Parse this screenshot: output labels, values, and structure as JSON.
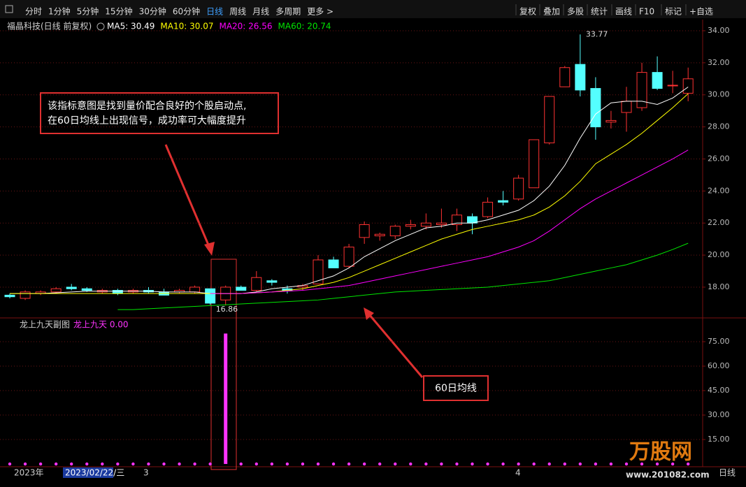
{
  "toolbar": {
    "tabs": [
      "分时",
      "1分钟",
      "5分钟",
      "15分钟",
      "30分钟",
      "60分钟",
      "日线",
      "周线",
      "月线",
      "多周期",
      "更多 >"
    ],
    "active_tab": 6,
    "buttons": [
      "复权",
      "叠加",
      "多股",
      "统计",
      "画线",
      "F10",
      "标记",
      "+自选"
    ]
  },
  "chart_title": "福晶科技(日线 前复权)",
  "note": [
    "该指标意图是找到量价配合良好的个股启动点,",
    "在60日均线上出现信号，成功率可大幅度提升"
  ],
  "ma60_note": "60日均线",
  "footer": {
    "year": "2023年",
    "cursor_date": "2023/02/22/三",
    "months": [
      "3",
      "4"
    ],
    "period": "日线"
  },
  "watermark": {
    "brand": "万股网",
    "site": "www.201082.com"
  },
  "chart_data": [
    {
      "type": "candlestick",
      "up_color": "#ff3232",
      "down_color": "#54ffff",
      "open": [
        17.5,
        17.3,
        17.6,
        17.7,
        18.0,
        17.9,
        17.7,
        17.8,
        17.7,
        17.8,
        17.7,
        17.7,
        17.7,
        17.9,
        17.2,
        18.0,
        17.8,
        18.4,
        17.9,
        18.0,
        18.2,
        19.7,
        19.3,
        21.1,
        21.2,
        21.2,
        21.8,
        21.8,
        21.9,
        21.9,
        22.4,
        22.4,
        23.4,
        23.5,
        24.2,
        27.0,
        30.5,
        31.9,
        30.4,
        28.3,
        28.9,
        29.2,
        31.4,
        30.6,
        30.1
      ],
      "high": [
        17.6,
        17.8,
        17.8,
        18.0,
        18.2,
        18.0,
        17.9,
        17.9,
        17.9,
        18.0,
        17.9,
        17.9,
        18.1,
        17.9,
        18.1,
        18.1,
        19.0,
        18.5,
        18.1,
        18.2,
        20.0,
        19.9,
        20.7,
        22.1,
        21.4,
        21.9,
        22.2,
        22.6,
        22.9,
        22.9,
        22.6,
        23.6,
        24.0,
        25.0,
        27.2,
        29.9,
        31.8,
        33.77,
        31.1,
        29.0,
        30.5,
        32.0,
        32.4,
        31.5,
        31.7
      ],
      "low": [
        17.3,
        17.2,
        17.5,
        17.6,
        17.8,
        17.7,
        17.6,
        17.5,
        17.6,
        17.6,
        17.5,
        17.6,
        17.6,
        16.9,
        16.86,
        17.8,
        17.7,
        18.1,
        17.6,
        17.8,
        18.2,
        19.2,
        19.2,
        20.7,
        20.9,
        21.0,
        21.6,
        21.6,
        21.7,
        21.5,
        21.3,
        22.3,
        23.1,
        23.4,
        24.2,
        26.9,
        30.5,
        29.9,
        27.2,
        27.9,
        27.7,
        29.0,
        30.3,
        30.1,
        29.6
      ],
      "close": [
        17.4,
        17.7,
        17.7,
        17.9,
        17.9,
        17.8,
        17.8,
        17.6,
        17.8,
        17.7,
        17.5,
        17.8,
        18.0,
        17.0,
        18.0,
        17.8,
        18.6,
        18.3,
        17.8,
        18.1,
        19.7,
        19.2,
        20.5,
        21.9,
        21.3,
        21.8,
        21.9,
        22.0,
        22.0,
        22.5,
        22.0,
        23.3,
        23.3,
        24.8,
        27.2,
        29.9,
        31.7,
        30.3,
        28.0,
        28.4,
        29.6,
        31.4,
        30.4,
        30.6,
        31.0
      ],
      "series": [
        {
          "name": "MA5: 30.49",
          "color": "#ffffff",
          "values": [
            17.6,
            17.6,
            17.6,
            17.65,
            17.7,
            17.75,
            17.75,
            17.75,
            17.75,
            17.75,
            17.7,
            17.7,
            17.7,
            17.6,
            17.6,
            17.6,
            17.7,
            17.9,
            18.0,
            18.1,
            18.4,
            18.7,
            19.2,
            19.9,
            20.4,
            20.9,
            21.3,
            21.7,
            21.8,
            22.0,
            22.0,
            22.2,
            22.5,
            22.8,
            23.4,
            24.3,
            25.6,
            27.3,
            28.8,
            29.5,
            29.6,
            29.6,
            29.4,
            29.8,
            30.49
          ]
        },
        {
          "name": "MA10: 30.07",
          "color": "#ffff00",
          "values": [
            17.6,
            17.6,
            17.6,
            17.6,
            17.6,
            17.6,
            17.6,
            17.6,
            17.6,
            17.6,
            17.6,
            17.6,
            17.6,
            17.6,
            17.6,
            17.6,
            17.65,
            17.7,
            17.8,
            17.9,
            18.1,
            18.3,
            18.6,
            19.0,
            19.4,
            19.8,
            20.2,
            20.6,
            21.0,
            21.3,
            21.6,
            21.8,
            22.0,
            22.2,
            22.5,
            23.0,
            23.7,
            24.6,
            25.7,
            26.3,
            26.9,
            27.6,
            28.4,
            29.2,
            30.07
          ]
        },
        {
          "name": "MA20: 26.56",
          "color": "#ff00ff",
          "values": [
            null,
            null,
            null,
            null,
            null,
            null,
            null,
            null,
            null,
            null,
            null,
            null,
            null,
            17.6,
            17.6,
            17.6,
            17.65,
            17.7,
            17.75,
            17.8,
            17.9,
            18.0,
            18.1,
            18.3,
            18.5,
            18.7,
            18.9,
            19.1,
            19.3,
            19.5,
            19.7,
            19.9,
            20.2,
            20.5,
            20.9,
            21.5,
            22.2,
            22.9,
            23.5,
            24.0,
            24.5,
            25.0,
            25.5,
            26.0,
            26.56
          ]
        },
        {
          "name": "MA60: 20.74",
          "color": "#00e600",
          "values": [
            null,
            null,
            null,
            null,
            null,
            null,
            null,
            16.6,
            16.6,
            16.65,
            16.7,
            16.75,
            16.8,
            16.85,
            16.9,
            16.95,
            17.0,
            17.05,
            17.1,
            17.15,
            17.2,
            17.3,
            17.4,
            17.5,
            17.6,
            17.7,
            17.75,
            17.8,
            17.85,
            17.9,
            17.95,
            18.0,
            18.1,
            18.2,
            18.3,
            18.4,
            18.6,
            18.8,
            19.0,
            19.2,
            19.4,
            19.7,
            20.0,
            20.35,
            20.74
          ]
        }
      ],
      "ylim": [
        16.08,
        34.61
      ],
      "yticks": [
        {
          "value": 18,
          "label": "18.00"
        },
        {
          "value": 20,
          "label": "20.00"
        },
        {
          "value": 22,
          "label": "22.00"
        },
        {
          "value": 24,
          "label": "24.00"
        },
        {
          "value": 26,
          "label": "26.00"
        },
        {
          "value": 28,
          "label": "28.00"
        },
        {
          "value": 30,
          "label": "30.00"
        },
        {
          "value": 32,
          "label": "32.00"
        },
        {
          "value": 34,
          "label": "34.00"
        }
      ],
      "grid": true
    },
    {
      "type": "bar",
      "title": "龙上九天副图",
      "color": "#ff33ff",
      "series": [
        {
          "name": "龙上九天 0.00",
          "color": "#ff33ff",
          "values": [
            0,
            0,
            0,
            0,
            0,
            0,
            0,
            0,
            0,
            0,
            0,
            0,
            0,
            0,
            80,
            0,
            0,
            0,
            0,
            0,
            0,
            0,
            0,
            0,
            0,
            0,
            0,
            0,
            0,
            0,
            0,
            0,
            0,
            0,
            0,
            0,
            0,
            0,
            0,
            0,
            0,
            0,
            0,
            0,
            0
          ]
        }
      ],
      "ylim": [
        -1.7,
        88.3
      ],
      "yticks": [
        {
          "value": 15,
          "label": "15.00"
        },
        {
          "value": 30,
          "label": "30.00"
        },
        {
          "value": 45,
          "label": "45.00"
        },
        {
          "value": 60,
          "label": "60.00"
        },
        {
          "value": 75,
          "label": "75.00"
        }
      ],
      "grid": true
    }
  ]
}
